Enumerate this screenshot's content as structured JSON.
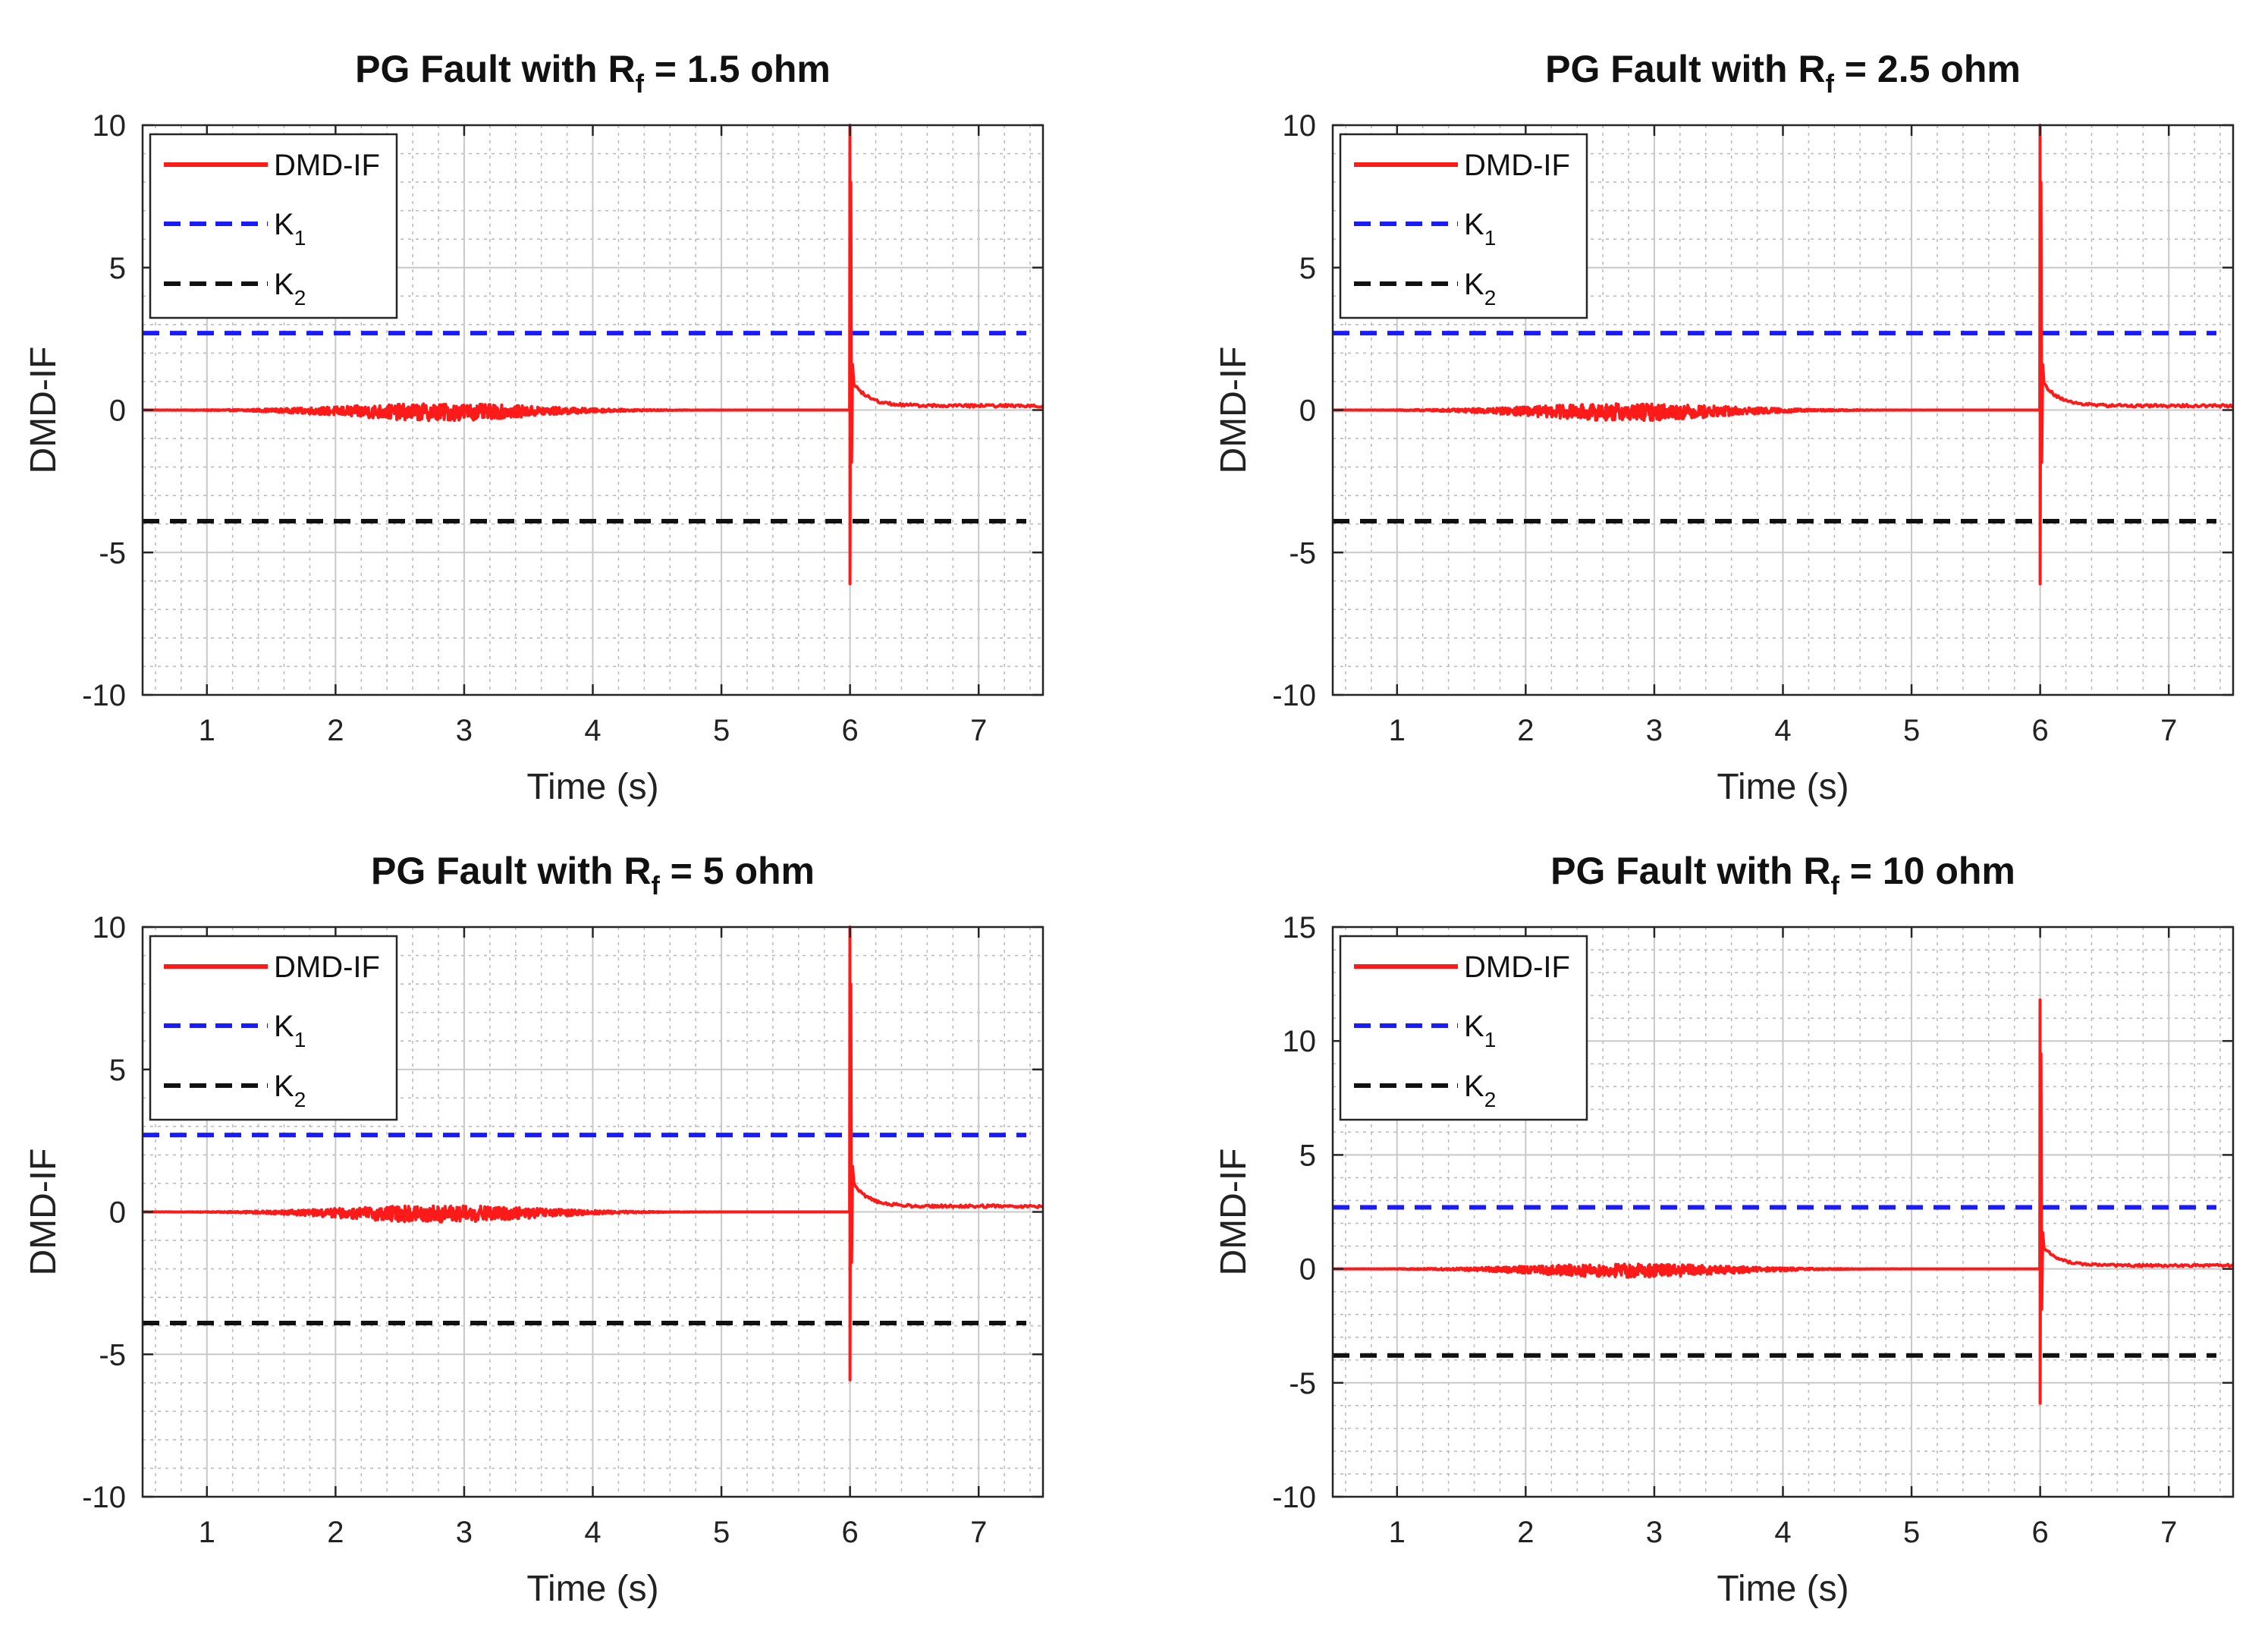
{
  "colors": {
    "signal": "#ff1a1a",
    "k1": "#1a1aff",
    "k2": "#111111",
    "grid_major": "#c8c8c8",
    "grid_minor": "#bcbcbc",
    "axes": "#262626"
  },
  "chart_data": [
    {
      "type": "line",
      "title_main": "PG Fault with R",
      "title_sub": "f",
      "title_tail": " = 1.5 ohm",
      "xlabel": "Time (s)",
      "ylabel": "DMD-IF",
      "xlim": [
        0.5,
        7.5
      ],
      "ylim": [
        -10,
        10
      ],
      "xticks": [
        "1",
        "2",
        "3",
        "4",
        "5",
        "6",
        "7"
      ],
      "yticks": [
        "-10",
        "-5",
        "0",
        "5",
        "10"
      ],
      "legend": [
        "DMD-IF",
        "K1",
        "K2"
      ],
      "legend_placement": "top-left",
      "grid": true,
      "series": [
        {
          "name": "DMD-IF",
          "fault_time": 6.0,
          "spike_max": 10.0,
          "spike_min": -6.1,
          "post_fault_level": 0.15,
          "pre_fault_noise": 0.3
        },
        {
          "name": "K1",
          "value": 2.7
        },
        {
          "name": "K2",
          "value": -3.9
        }
      ]
    },
    {
      "type": "line",
      "title_main": "PG Fault with R",
      "title_sub": "f",
      "title_tail": " = 2.5 ohm",
      "xlabel": "Time (s)",
      "ylabel": "DMD-IF",
      "xlim": [
        0.5,
        7.5
      ],
      "ylim": [
        -10,
        10
      ],
      "xticks": [
        "1",
        "2",
        "3",
        "4",
        "5",
        "6",
        "7"
      ],
      "yticks": [
        "-10",
        "-5",
        "0",
        "5",
        "10"
      ],
      "legend": [
        "DMD-IF",
        "K1",
        "K2"
      ],
      "legend_placement": "top-left",
      "grid": true,
      "series": [
        {
          "name": "DMD-IF",
          "fault_time": 6.0,
          "spike_max": 10.0,
          "spike_min": -6.1,
          "post_fault_level": 0.15,
          "pre_fault_noise": 0.3
        },
        {
          "name": "K1",
          "value": 2.7
        },
        {
          "name": "K2",
          "value": -3.9
        }
      ]
    },
    {
      "type": "line",
      "title_main": "PG Fault with R",
      "title_sub": "f",
      "title_tail": " = 5 ohm",
      "xlabel": "Time (s)",
      "ylabel": "DMD-IF",
      "xlim": [
        0.5,
        7.5
      ],
      "ylim": [
        -10,
        10
      ],
      "xticks": [
        "1",
        "2",
        "3",
        "4",
        "5",
        "6",
        "7"
      ],
      "yticks": [
        "-10",
        "-5",
        "0",
        "5",
        "10"
      ],
      "legend": [
        "DMD-IF",
        "K1",
        "K2"
      ],
      "legend_placement": "top-left",
      "grid": true,
      "series": [
        {
          "name": "DMD-IF",
          "fault_time": 6.0,
          "spike_max": 10.0,
          "spike_min": -5.9,
          "post_fault_level": 0.2,
          "pre_fault_noise": 0.3
        },
        {
          "name": "K1",
          "value": 2.7
        },
        {
          "name": "K2",
          "value": -3.9
        }
      ]
    },
    {
      "type": "line",
      "title_main": "PG Fault with R",
      "title_sub": "f",
      "title_tail": " = 10 ohm",
      "xlabel": "Time (s)",
      "ylabel": "DMD-IF",
      "xlim": [
        0.5,
        7.5
      ],
      "ylim": [
        -10,
        15
      ],
      "xticks": [
        "1",
        "2",
        "3",
        "4",
        "5",
        "6",
        "7"
      ],
      "yticks": [
        "-10",
        "-5",
        "0",
        "5",
        "10",
        "15"
      ],
      "legend": [
        "DMD-IF",
        "K1",
        "K2"
      ],
      "legend_placement": "top-left",
      "grid": true,
      "series": [
        {
          "name": "DMD-IF",
          "fault_time": 6.0,
          "spike_max": 11.8,
          "spike_min": -5.9,
          "post_fault_level": 0.15,
          "pre_fault_noise": 0.3
        },
        {
          "name": "K1",
          "value": 2.7
        },
        {
          "name": "K2",
          "value": -3.8
        }
      ]
    }
  ]
}
